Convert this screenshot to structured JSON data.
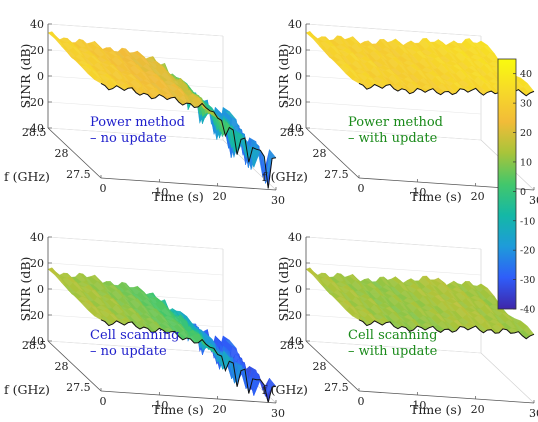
{
  "colorbar": {
    "ticks": [
      "40",
      "30",
      "20",
      "10",
      "0",
      "-10",
      "-20",
      "-30",
      "-40"
    ],
    "range": [
      -40,
      45
    ],
    "stops": [
      "#3e26a8",
      "#2f5df9",
      "#1e9bda",
      "#14b8a6",
      "#43c76b",
      "#a8c43a",
      "#f2bc38",
      "#f7da28",
      "#f9fb0e"
    ]
  },
  "chart_data": [
    {
      "type": "surface",
      "annotation": [
        "Power method",
        "– no update"
      ],
      "annotation_color": "#2020cc",
      "zlabel": "SINR (dB)",
      "ylabel": "f (GHz)",
      "xlabel": "Time (s)",
      "zticks": [
        "40",
        "20",
        "0",
        "-20",
        "-40"
      ],
      "yticks": [
        "28.5",
        "28",
        "27.5"
      ],
      "xticks": [
        "0",
        "10",
        "20",
        "30"
      ],
      "xlim": [
        0,
        30
      ],
      "ylim": [
        27.4,
        28.6
      ],
      "zlim": [
        -40,
        40
      ],
      "sinr_profile": {
        "time": [
          0,
          3,
          6,
          9,
          12,
          15,
          18,
          20,
          22,
          24,
          26,
          28,
          30
        ],
        "sinr": [
          32,
          30,
          28,
          26,
          24,
          22,
          20,
          14,
          6,
          -2,
          -8,
          -14,
          -16
        ]
      },
      "deep_fades": true
    },
    {
      "type": "surface",
      "annotation": [
        "Power method",
        "– with update"
      ],
      "annotation_color": "#1a8a1a",
      "zlabel": "SINR (dB)",
      "ylabel": "f (GHz)",
      "xlabel": "Time (s)",
      "zticks": [
        "40",
        "20",
        "0",
        "-20",
        "-40"
      ],
      "yticks": [
        "28.5",
        "28",
        "27.5"
      ],
      "xticks": [
        "0",
        "10",
        "20",
        "30"
      ],
      "xlim": [
        0,
        30
      ],
      "ylim": [
        27.4,
        28.6
      ],
      "zlim": [
        -40,
        40
      ],
      "sinr_profile": {
        "time": [
          0,
          3,
          6,
          9,
          12,
          15,
          18,
          20,
          22,
          24,
          26,
          28,
          30
        ],
        "sinr": [
          32,
          31,
          31,
          30,
          30,
          31,
          32,
          33,
          33,
          34,
          34,
          35,
          35
        ]
      },
      "deep_fades": false
    },
    {
      "type": "surface",
      "annotation": [
        "Cell scanning",
        "– no update"
      ],
      "annotation_color": "#2020cc",
      "zlabel": "SINR (dB)",
      "ylabel": "f (GHz)",
      "xlabel": "Time (s)",
      "zticks": [
        "40",
        "20",
        "0",
        "-20",
        "-40"
      ],
      "yticks": [
        "28.5",
        "28",
        "27.5"
      ],
      "xticks": [
        "0",
        "10",
        "20",
        "30"
      ],
      "xlim": [
        0,
        30
      ],
      "ylim": [
        27.4,
        28.6
      ],
      "zlim": [
        -40,
        40
      ],
      "sinr_profile": {
        "time": [
          0,
          3,
          6,
          9,
          12,
          15,
          18,
          20,
          22,
          24,
          26,
          28,
          30
        ],
        "sinr": [
          14,
          13,
          12,
          10,
          8,
          5,
          2,
          -4,
          -10,
          -16,
          -22,
          -26,
          -28
        ]
      },
      "deep_fades": true
    },
    {
      "type": "surface",
      "annotation": [
        "Cell scanning",
        "– with update"
      ],
      "annotation_color": "#1a8a1a",
      "zlabel": "SINR (dB)",
      "ylabel": "f (GHz)",
      "xlabel": "Time (s)",
      "zticks": [
        "40",
        "20",
        "0",
        "-20",
        "-40"
      ],
      "yticks": [
        "28.5",
        "28",
        "27.5"
      ],
      "xticks": [
        "0",
        "10",
        "20",
        "30"
      ],
      "xlim": [
        0,
        30
      ],
      "ylim": [
        27.4,
        28.6
      ],
      "zlim": [
        -40,
        40
      ],
      "sinr_profile": {
        "time": [
          0,
          3,
          6,
          9,
          12,
          15,
          18,
          20,
          22,
          24,
          26,
          28,
          30
        ],
        "sinr": [
          14,
          13,
          12,
          11,
          11,
          12,
          13,
          14,
          14,
          13,
          13,
          12,
          12
        ]
      },
      "deep_fades": false
    }
  ]
}
